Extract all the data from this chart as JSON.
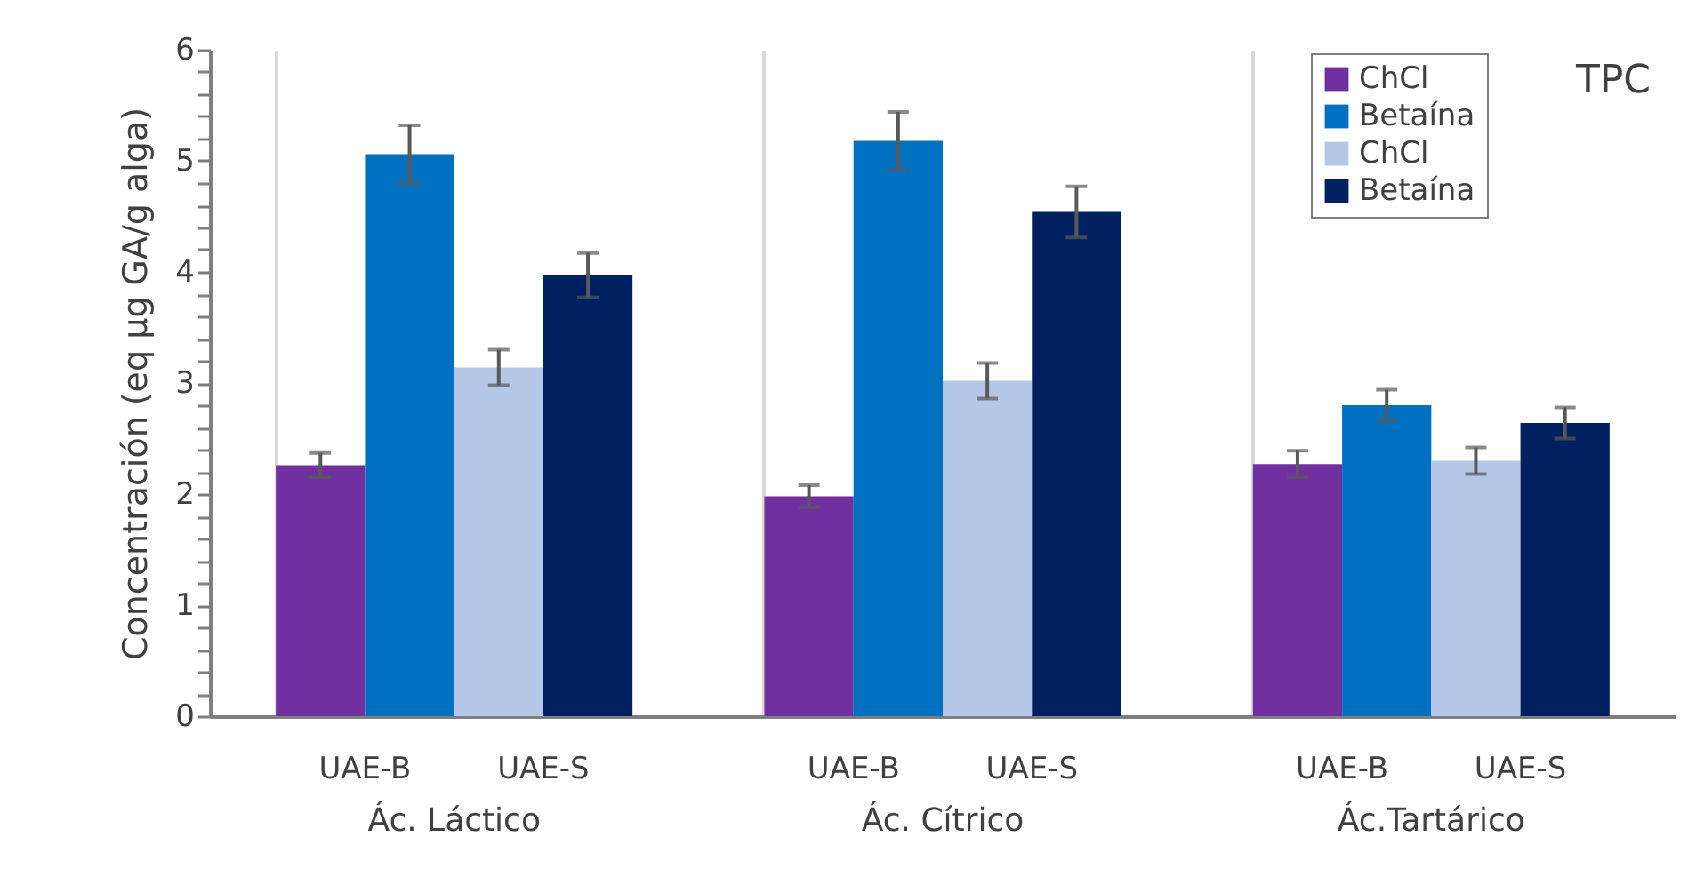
{
  "chart_data": {
    "type": "bar",
    "ylabel": "Concentración (eq µg GA/g alga)",
    "categories": [
      "Ác. Láctico",
      "Ác. Cítrico",
      "Ác.Tartárico"
    ],
    "series": [
      {
        "name": "ChCl",
        "color": "#7030a0",
        "values": [
          2.26,
          1.98,
          2.27
        ],
        "errors": [
          0.11,
          0.1,
          0.12
        ]
      },
      {
        "name": "Betaína",
        "color": "#0070c0",
        "values": [
          5.06,
          5.18,
          2.8
        ],
        "errors": [
          0.26,
          0.26,
          0.14
        ]
      },
      {
        "name": "ChCl",
        "color": "#b4c7e7",
        "values": [
          3.14,
          3.02,
          2.3
        ],
        "errors": [
          0.16,
          0.16,
          0.12
        ]
      },
      {
        "name": "Betaína",
        "color": "#002060",
        "values": [
          3.97,
          4.54,
          2.64
        ],
        "errors": [
          0.2,
          0.23,
          0.14
        ]
      }
    ],
    "ylim": [
      0,
      6
    ],
    "yticks": [
      0,
      {
        "value": 0.2,
        "label": null
      },
      {
        "value": 0.4,
        "label": null
      },
      {
        "value": 0.6,
        "label": null
      },
      {
        "value": 0.8,
        "label": null
      },
      1,
      {
        "value": 1.2,
        "label": null
      },
      {
        "value": 1.4,
        "label": null
      },
      {
        "value": 1.6,
        "label": null
      },
      {
        "value": 1.8,
        "label": null
      },
      2,
      {
        "value": 2.2,
        "label": null
      },
      {
        "value": 2.4,
        "label": null
      },
      {
        "value": 2.6,
        "label": null
      },
      {
        "value": 2.8,
        "label": null
      },
      3,
      {
        "value": 3.2,
        "label": null
      },
      {
        "value": 3.4,
        "label": null
      },
      {
        "value": 3.6,
        "label": null
      },
      {
        "value": 3.8,
        "label": null
      },
      4,
      {
        "value": 4.2,
        "label": null
      },
      {
        "value": 4.4,
        "label": null
      },
      {
        "value": 4.6,
        "label": null
      },
      {
        "value": 4.8,
        "label": null
      },
      5,
      {
        "value": 5.2,
        "label": null
      },
      {
        "value": 5.4,
        "label": null
      },
      {
        "value": 5.6,
        "label": null
      },
      {
        "value": 5.8,
        "label": null
      },
      6
    ],
    "grid": "x",
    "legend": "top right",
    "annotations": [
      "UAE-B",
      "UAE-S",
      "UAE-B",
      "UAE-S",
      "UAE-B",
      "UAE-S",
      "TPC"
    ]
  }
}
